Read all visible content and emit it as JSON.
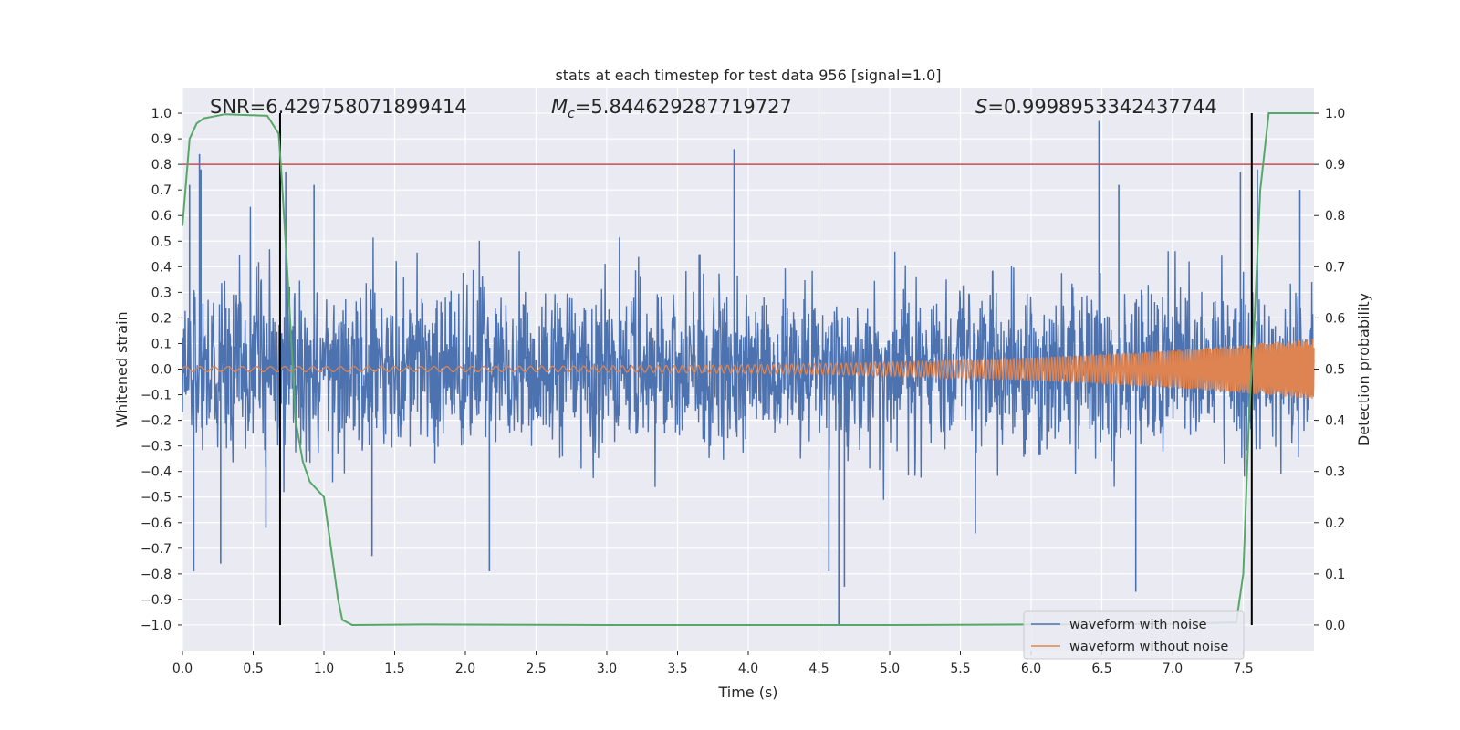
{
  "chart_data": {
    "type": "line",
    "title": "stats at each timestep for test data 956 [signal=1.0]",
    "xlabel": "Time (s)",
    "ylabel": "Whitened strain",
    "y2label": "Detection probability",
    "xlim": [
      0.0,
      8.0
    ],
    "ylim": [
      -1.1,
      1.1
    ],
    "y2lim": [
      -0.05,
      1.05
    ],
    "xticks": [
      "0.0",
      "0.5",
      "1.0",
      "1.5",
      "2.0",
      "2.5",
      "3.0",
      "3.5",
      "4.0",
      "4.5",
      "5.0",
      "5.5",
      "6.0",
      "6.5",
      "7.0",
      "7.5"
    ],
    "yticks": [
      "1.0",
      "0.9",
      "0.8",
      "0.7",
      "0.6",
      "0.5",
      "0.4",
      "0.3",
      "0.2",
      "0.1",
      "0.0",
      "−0.1",
      "−0.2",
      "−0.3",
      "−0.4",
      "−0.5",
      "−0.6",
      "−0.7",
      "−0.8",
      "−0.9",
      "−1.0"
    ],
    "y2ticks": [
      "1.0",
      "0.9",
      "0.8",
      "0.7",
      "0.6",
      "0.5",
      "0.4",
      "0.3",
      "0.2",
      "0.1",
      "0.0"
    ],
    "annotations": {
      "snr": "SNR=6.429758071899414",
      "mc_symbol": "M",
      "mc_sub": "c",
      "mc_value": "=5.844629287719727",
      "s_symbol": "S",
      "s_value": "=0.9998953342437744"
    },
    "threshold": {
      "value": 0.9,
      "axis": "right",
      "color": "#c44e52"
    },
    "vertical_markers": {
      "x": [
        0.69,
        7.56
      ],
      "ymin": -1.0,
      "ymax": 1.0,
      "color": "#000000"
    },
    "series": [
      {
        "name": "waveform with noise",
        "color": "#4c72b0",
        "kind": "noise",
        "typical_amplitude": 0.4,
        "spike_points": [
          [
            0.05,
            0.72
          ],
          [
            0.12,
            0.84
          ],
          [
            0.13,
            0.78
          ],
          [
            0.08,
            -0.79
          ],
          [
            0.27,
            -0.76
          ],
          [
            0.73,
            0.77
          ],
          [
            0.93,
            0.72
          ],
          [
            1.34,
            -0.73
          ],
          [
            2.17,
            -0.79
          ],
          [
            3.9,
            0.86
          ],
          [
            4.57,
            -0.79
          ],
          [
            4.64,
            -1.0
          ],
          [
            4.68,
            -0.85
          ],
          [
            6.48,
            0.97
          ],
          [
            6.62,
            0.72
          ],
          [
            6.74,
            -0.87
          ],
          [
            7.48,
            0.77
          ],
          [
            7.6,
            0.78
          ],
          [
            7.9,
            0.7
          ],
          [
            0.59,
            -0.62
          ]
        ]
      },
      {
        "name": "waveform without noise",
        "color": "#dd8452",
        "kind": "chirp",
        "amplitude_start": 0.01,
        "amplitude_end": 0.12
      },
      {
        "name": "detection probability",
        "color": "#55a868",
        "axis": "right",
        "x": [
          0.0,
          0.05,
          0.1,
          0.15,
          0.3,
          0.6,
          0.68,
          0.7,
          0.75,
          0.8,
          0.85,
          0.9,
          1.0,
          1.05,
          1.1,
          1.13,
          1.2,
          1.7,
          3.0,
          5.0,
          6.0,
          7.0,
          7.45,
          7.5,
          7.54,
          7.58,
          7.62,
          7.68,
          8.0
        ],
        "y": [
          0.78,
          0.95,
          0.98,
          0.99,
          0.998,
          0.995,
          0.96,
          0.88,
          0.65,
          0.4,
          0.32,
          0.28,
          0.25,
          0.15,
          0.05,
          0.01,
          0.0,
          0.001,
          0.0,
          0.0,
          0.001,
          0.002,
          0.005,
          0.1,
          0.4,
          0.6,
          0.85,
          1.0,
          1.0
        ]
      }
    ],
    "legend": {
      "placement": "lower-right",
      "entries": [
        {
          "label": "waveform with noise",
          "color": "#4c72b0"
        },
        {
          "label": "waveform without noise",
          "color": "#dd8452"
        }
      ]
    }
  }
}
